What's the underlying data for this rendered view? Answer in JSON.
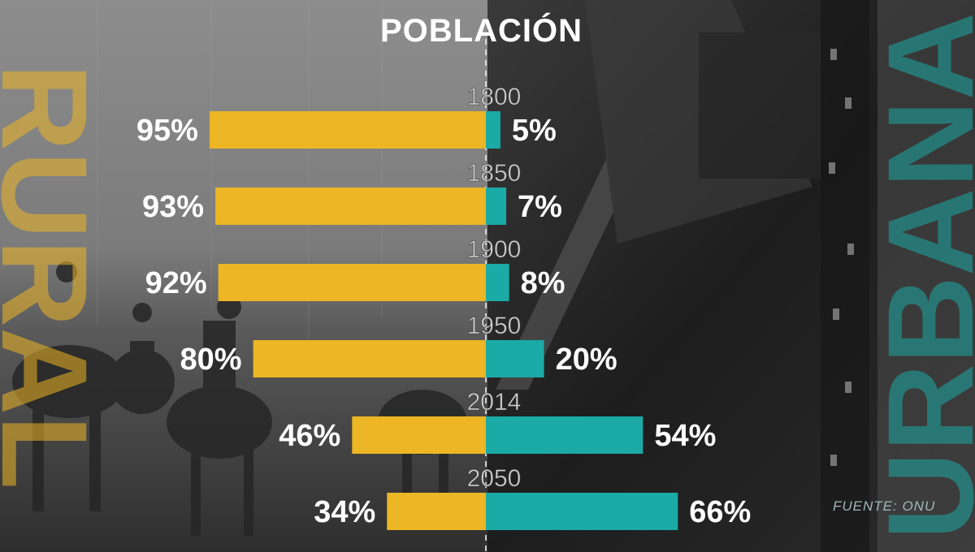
{
  "title": "POBLACIÓN",
  "side_labels": {
    "rural": "RURAL",
    "urban": "URBANA"
  },
  "source": "FUENTE: ONU",
  "colors": {
    "rural": "#ECB624",
    "urban": "#1BAAA6",
    "year_text": "#cfcfcf",
    "value_text": "#ffffff"
  },
  "chart_data": {
    "type": "bar",
    "orientation": "horizontal-diverging",
    "title": "POBLACIÓN",
    "categories": [
      "1800",
      "1850",
      "1900",
      "1950",
      "2014",
      "2050"
    ],
    "series": [
      {
        "name": "RURAL",
        "values": [
          95,
          93,
          92,
          80,
          46,
          34
        ],
        "labels": [
          "95%",
          "93%",
          "92%",
          "80%",
          "46%",
          "34%"
        ]
      },
      {
        "name": "URBANA",
        "values": [
          5,
          7,
          8,
          20,
          54,
          66
        ],
        "labels": [
          "5%",
          "7%",
          "8%",
          "20%",
          "54%",
          "66%"
        ]
      }
    ],
    "unit": "%",
    "grid": false
  }
}
